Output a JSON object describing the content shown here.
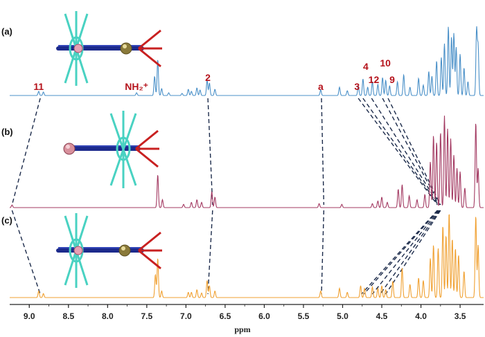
{
  "chart_data": {
    "type": "line",
    "title": "",
    "xlabel": "ppm",
    "ylabel": "",
    "x_reversed": true,
    "xlim": [
      9.25,
      3.2
    ],
    "x_ticks": [
      "9.0",
      "8.5",
      "8.0",
      "7.5",
      "7.0",
      "6.5",
      "6.0",
      "5.5",
      "5.0",
      "4.5",
      "4.0",
      "3.5"
    ],
    "x_tick_values": [
      9.0,
      8.5,
      8.0,
      7.5,
      7.0,
      6.5,
      6.0,
      5.5,
      5.0,
      4.5,
      4.0,
      3.5
    ],
    "label_color": "#b5121b",
    "dash_color": "#1b2a4a",
    "series": [
      {
        "name": "(a)",
        "color": "#4a90c8",
        "peaks": [
          {
            "x": 8.88,
            "h": 6
          },
          {
            "x": 8.82,
            "h": 5
          },
          {
            "x": 7.63,
            "h": 4
          },
          {
            "x": 7.4,
            "h": 28
          },
          {
            "x": 7.36,
            "h": 52
          },
          {
            "x": 7.31,
            "h": 10
          },
          {
            "x": 7.22,
            "h": 4
          },
          {
            "x": 7.05,
            "h": 3
          },
          {
            "x": 6.97,
            "h": 9
          },
          {
            "x": 6.93,
            "h": 6
          },
          {
            "x": 6.86,
            "h": 11
          },
          {
            "x": 6.82,
            "h": 8
          },
          {
            "x": 6.73,
            "h": 22
          },
          {
            "x": 6.7,
            "h": 18
          },
          {
            "x": 6.63,
            "h": 9
          },
          {
            "x": 5.28,
            "h": 8
          },
          {
            "x": 5.04,
            "h": 12
          },
          {
            "x": 4.94,
            "h": 7
          },
          {
            "x": 4.8,
            "h": 14
          },
          {
            "x": 4.74,
            "h": 24
          },
          {
            "x": 4.68,
            "h": 12
          },
          {
            "x": 4.62,
            "h": 20
          },
          {
            "x": 4.55,
            "h": 16
          },
          {
            "x": 4.49,
            "h": 26
          },
          {
            "x": 4.45,
            "h": 22
          },
          {
            "x": 4.4,
            "h": 14
          },
          {
            "x": 4.3,
            "h": 20
          },
          {
            "x": 4.22,
            "h": 30
          },
          {
            "x": 4.14,
            "h": 12
          },
          {
            "x": 4.03,
            "h": 25
          },
          {
            "x": 3.97,
            "h": 15
          },
          {
            "x": 3.9,
            "h": 35
          },
          {
            "x": 3.86,
            "h": 28
          },
          {
            "x": 3.8,
            "h": 50
          },
          {
            "x": 3.74,
            "h": 55
          },
          {
            "x": 3.7,
            "h": 75
          },
          {
            "x": 3.65,
            "h": 100
          },
          {
            "x": 3.61,
            "h": 85
          },
          {
            "x": 3.58,
            "h": 90
          },
          {
            "x": 3.55,
            "h": 70
          },
          {
            "x": 3.5,
            "h": 60
          },
          {
            "x": 3.45,
            "h": 40
          },
          {
            "x": 3.4,
            "h": 20
          },
          {
            "x": 3.29,
            "h": 95
          },
          {
            "x": 3.27,
            "h": 70
          }
        ]
      },
      {
        "name": "(b)",
        "color": "#a33a62",
        "peaks": [
          {
            "x": 9.22,
            "h": 4
          },
          {
            "x": 7.36,
            "h": 50
          },
          {
            "x": 7.3,
            "h": 12
          },
          {
            "x": 7.03,
            "h": 5
          },
          {
            "x": 6.93,
            "h": 8
          },
          {
            "x": 6.86,
            "h": 12
          },
          {
            "x": 6.8,
            "h": 8
          },
          {
            "x": 6.67,
            "h": 24
          },
          {
            "x": 6.63,
            "h": 16
          },
          {
            "x": 5.3,
            "h": 6
          },
          {
            "x": 5.01,
            "h": 5
          },
          {
            "x": 4.62,
            "h": 6
          },
          {
            "x": 4.55,
            "h": 10
          },
          {
            "x": 4.5,
            "h": 16
          },
          {
            "x": 4.43,
            "h": 8
          },
          {
            "x": 4.29,
            "h": 28
          },
          {
            "x": 4.24,
            "h": 35
          },
          {
            "x": 4.15,
            "h": 18
          },
          {
            "x": 4.05,
            "h": 12
          },
          {
            "x": 3.95,
            "h": 20
          },
          {
            "x": 3.88,
            "h": 70
          },
          {
            "x": 3.84,
            "h": 110
          },
          {
            "x": 3.8,
            "h": 100
          },
          {
            "x": 3.75,
            "h": 115
          },
          {
            "x": 3.7,
            "h": 140
          },
          {
            "x": 3.66,
            "h": 120
          },
          {
            "x": 3.62,
            "h": 105
          },
          {
            "x": 3.58,
            "h": 80
          },
          {
            "x": 3.54,
            "h": 60
          },
          {
            "x": 3.5,
            "h": 55
          },
          {
            "x": 3.44,
            "h": 30
          },
          {
            "x": 3.3,
            "h": 130
          },
          {
            "x": 3.27,
            "h": 60
          }
        ]
      },
      {
        "name": "(c)",
        "color": "#f0a030",
        "peaks": [
          {
            "x": 8.88,
            "h": 10
          },
          {
            "x": 8.82,
            "h": 6
          },
          {
            "x": 7.39,
            "h": 35
          },
          {
            "x": 7.36,
            "h": 60
          },
          {
            "x": 7.31,
            "h": 10
          },
          {
            "x": 6.97,
            "h": 8
          },
          {
            "x": 6.93,
            "h": 8
          },
          {
            "x": 6.86,
            "h": 12
          },
          {
            "x": 6.8,
            "h": 7
          },
          {
            "x": 6.73,
            "h": 26
          },
          {
            "x": 6.7,
            "h": 18
          },
          {
            "x": 6.63,
            "h": 10
          },
          {
            "x": 5.28,
            "h": 10
          },
          {
            "x": 5.04,
            "h": 14
          },
          {
            "x": 4.94,
            "h": 8
          },
          {
            "x": 4.77,
            "h": 18
          },
          {
            "x": 4.72,
            "h": 14
          },
          {
            "x": 4.62,
            "h": 16
          },
          {
            "x": 4.55,
            "h": 14
          },
          {
            "x": 4.5,
            "h": 18
          },
          {
            "x": 4.45,
            "h": 12
          },
          {
            "x": 4.36,
            "h": 25
          },
          {
            "x": 4.24,
            "h": 45
          },
          {
            "x": 4.14,
            "h": 20
          },
          {
            "x": 4.03,
            "h": 30
          },
          {
            "x": 3.97,
            "h": 26
          },
          {
            "x": 3.88,
            "h": 60
          },
          {
            "x": 3.84,
            "h": 80
          },
          {
            "x": 3.78,
            "h": 75
          },
          {
            "x": 3.72,
            "h": 110
          },
          {
            "x": 3.68,
            "h": 95
          },
          {
            "x": 3.64,
            "h": 130
          },
          {
            "x": 3.6,
            "h": 90
          },
          {
            "x": 3.56,
            "h": 75
          },
          {
            "x": 3.52,
            "h": 65
          },
          {
            "x": 3.45,
            "h": 40
          },
          {
            "x": 3.3,
            "h": 125
          },
          {
            "x": 3.27,
            "h": 80
          }
        ]
      }
    ],
    "peak_labels": [
      {
        "text": "11",
        "x": 8.88,
        "series": "(a)"
      },
      {
        "text": "NH₂⁺",
        "x": 7.63,
        "series": "(a)"
      },
      {
        "text": "2",
        "x": 6.72,
        "series": "(a)"
      },
      {
        "text": "a",
        "x": 5.28,
        "series": "(a)"
      },
      {
        "text": "3",
        "x": 4.79,
        "series": "(a)"
      },
      {
        "text": "4",
        "x": 4.74,
        "series": "(a)"
      },
      {
        "text": "12",
        "x": 4.62,
        "series": "(a)"
      },
      {
        "text": "10",
        "x": 4.49,
        "series": "(a)"
      },
      {
        "text": "9",
        "x": 4.42,
        "series": "(a)"
      }
    ],
    "correlations": [
      {
        "name": "11",
        "a": 8.86,
        "b": 9.22,
        "c": 8.86
      },
      {
        "name": "2",
        "a": 6.72,
        "b": 6.66,
        "c": 6.72
      },
      {
        "name": "a",
        "a": 5.27,
        "b": 5.24,
        "c": 5.27
      },
      {
        "name": "3",
        "a": 4.8,
        "b": 3.79,
        "c": 4.76
      },
      {
        "name": "4",
        "a": 4.74,
        "b": 3.78,
        "c": 4.73
      },
      {
        "name": "12",
        "a": 4.63,
        "b": 3.77,
        "c": 4.62
      },
      {
        "name": "10",
        "a": 4.49,
        "b": 3.76,
        "c": 4.52
      },
      {
        "name": "9",
        "a": 4.42,
        "b": 3.75,
        "c": 4.45
      }
    ]
  }
}
